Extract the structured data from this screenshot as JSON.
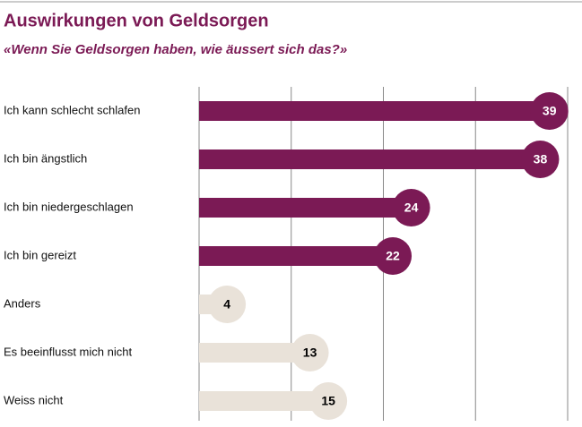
{
  "chart_data": {
    "type": "hbar",
    "title": "Auswirkungen von Geldsorgen",
    "subtitle": "«Wenn Sie Geldsorgen haben, wie äussert sich das?»",
    "categories": [
      "Ich kann schlecht schlafen",
      "Ich bin ängstlich",
      "Ich bin niedergeschlagen",
      "Ich bin gereizt",
      "Anders",
      "Es beeinflusst mich nicht",
      "Weiss nicht"
    ],
    "values": [
      39,
      38,
      24,
      22,
      4,
      13,
      15
    ],
    "colors": [
      "#7b1a55",
      "#7b1a55",
      "#7b1a55",
      "#7b1a55",
      "#e9e2d9",
      "#e9e2d9",
      "#e9e2d9"
    ],
    "label_colors": [
      "#ffffff",
      "#ffffff",
      "#ffffff",
      "#ffffff",
      "#000000",
      "#000000",
      "#000000"
    ],
    "xlim": [
      0,
      40
    ],
    "xticks": [
      0,
      10,
      20,
      30,
      40
    ],
    "grid": true
  }
}
